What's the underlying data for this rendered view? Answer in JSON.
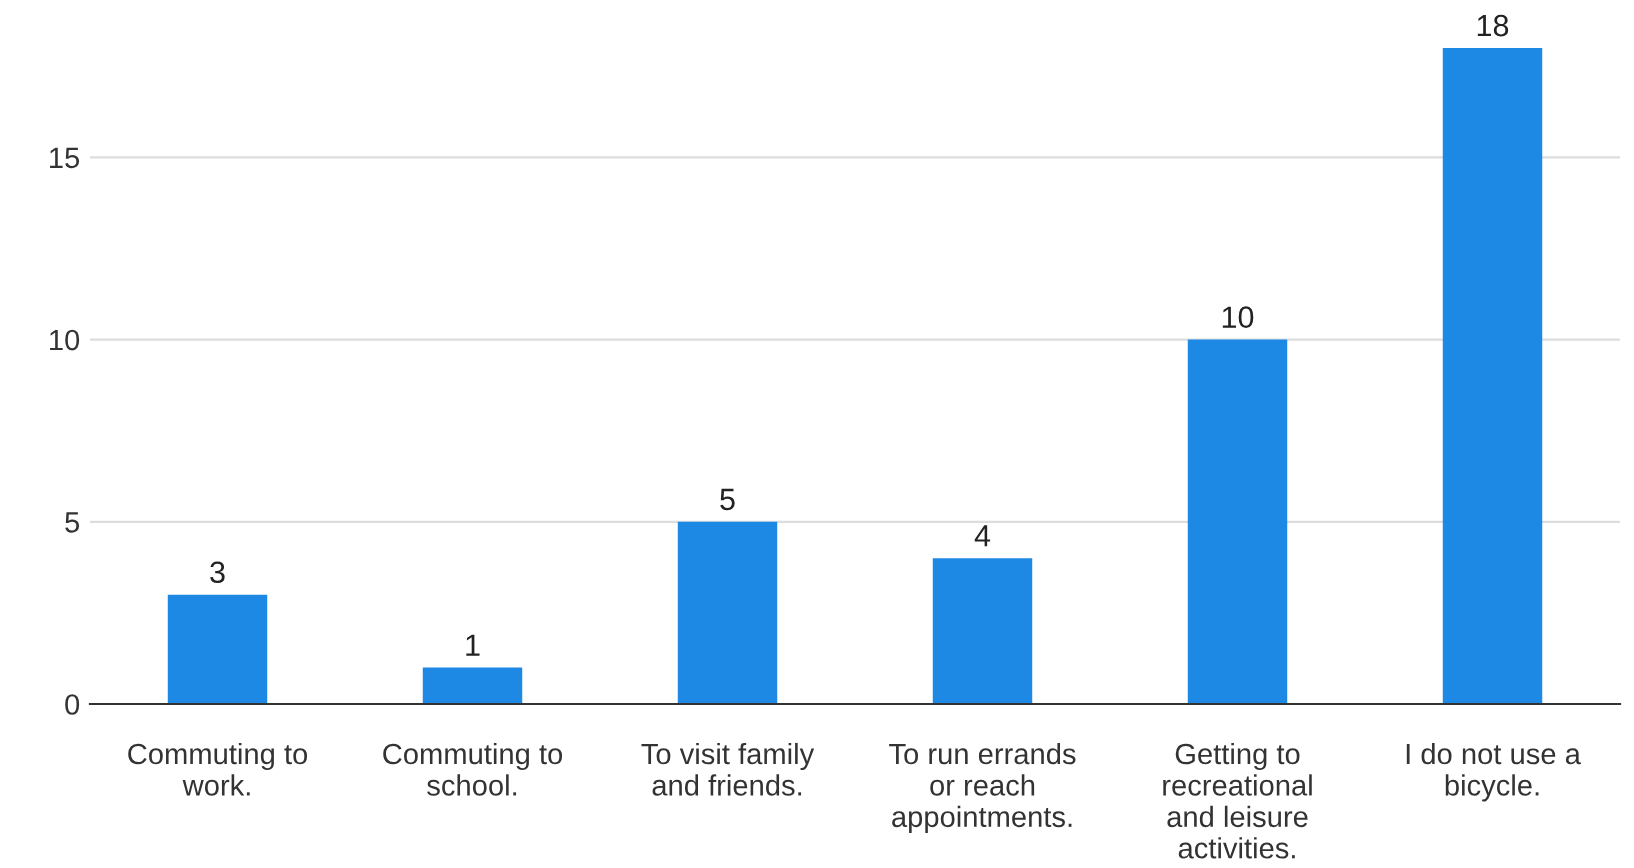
{
  "chart_data": {
    "type": "bar",
    "categories": [
      "Commuting to\nwork.",
      "Commuting to\nschool.",
      "To visit family\nand friends.",
      "To run errands\nor reach\nappointments.",
      "Getting to\nrecreational\nand leisure\nactivities.",
      "I do not use a\nbicycle."
    ],
    "values": [
      3,
      1,
      5,
      4,
      10,
      18
    ],
    "color": "#1e88e5",
    "ylim": [
      0,
      18
    ],
    "yticks": [
      0,
      5,
      10,
      15
    ],
    "grid": "y",
    "data_labels": true,
    "legend": false
  }
}
